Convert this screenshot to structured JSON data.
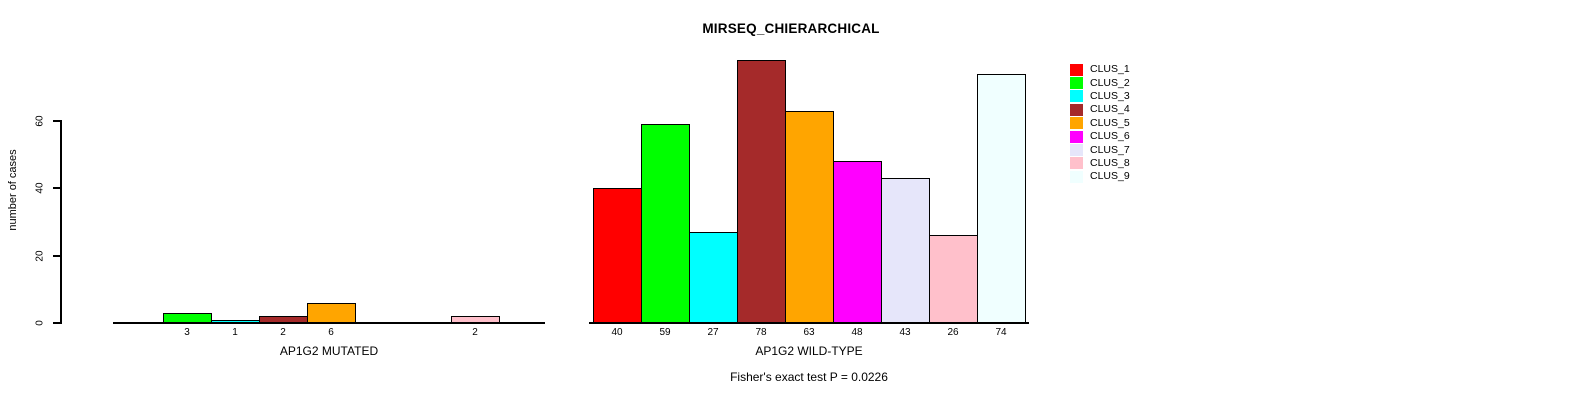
{
  "title": "MIRSEQ_CHIERARCHICAL",
  "chart_data": {
    "type": "bar",
    "title": "MIRSEQ_CHIERARCHICAL",
    "ylabel": "number of cases",
    "xlabel": "",
    "ylim": [
      0,
      78
    ],
    "yticks": [
      0,
      20,
      40,
      60
    ],
    "grid": false,
    "legend_position": "right-top",
    "categories": [
      "CLUS_1",
      "CLUS_2",
      "CLUS_3",
      "CLUS_4",
      "CLUS_5",
      "CLUS_6",
      "CLUS_7",
      "CLUS_8",
      "CLUS_9"
    ],
    "colors": [
      "#FF0000",
      "#00FF00",
      "#00FFFF",
      "#A52A2A",
      "#FFA500",
      "#FF00FF",
      "#E6E6FA",
      "#FFC0CB",
      "#F0FFFF"
    ],
    "series_note": "bars with value 0 are not drawn and not labeled",
    "groups": [
      {
        "label": "AP1G2 MUTATED",
        "values": [
          0,
          3,
          1,
          2,
          6,
          0,
          0,
          2,
          0
        ]
      },
      {
        "label": "AP1G2 WILD-TYPE",
        "values": [
          40,
          59,
          27,
          78,
          63,
          48,
          43,
          26,
          74
        ]
      }
    ],
    "annotation": "Fisher's exact test P = 0.0226"
  }
}
